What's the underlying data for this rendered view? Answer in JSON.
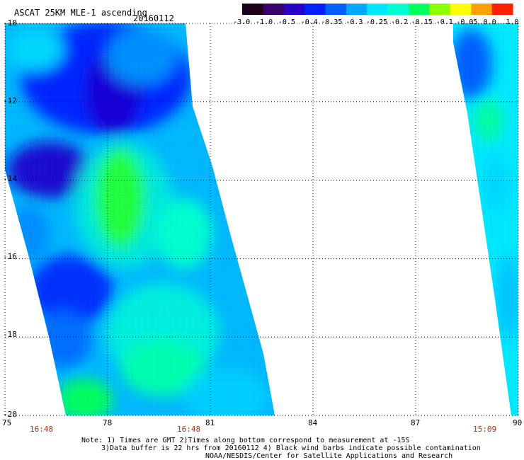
{
  "header": {
    "title": "ASCAT 25KM MLE-1 ascending",
    "date": "20160112"
  },
  "colorbar": {
    "labels": [
      "-3.0",
      "-1.0",
      "-0.5",
      "-0.4",
      "-0.35",
      "-0.3",
      "-0.25",
      "-0.2",
      "-0.15",
      "-0.1",
      "-0.05",
      "0.0",
      "1.0"
    ],
    "colors": [
      "#1a0018",
      "#3a006a",
      "#2a00c8",
      "#0020ff",
      "#0060ff",
      "#00a8ff",
      "#00e8ff",
      "#00ffd0",
      "#00ff60",
      "#90ff00",
      "#ffff00",
      "#ffa000",
      "#ff2000"
    ]
  },
  "map": {
    "lon_ticks": [
      "75",
      "78",
      "81",
      "84",
      "87",
      "90"
    ],
    "lat_ticks": [
      "-10",
      "-12",
      "-14",
      "-16",
      "-18",
      "-20"
    ],
    "lon_range": [
      75,
      90
    ],
    "lat_range": [
      -20,
      -10
    ],
    "grid": "dotted"
  },
  "times": [
    "16:48",
    "16:48",
    "15:09"
  ],
  "time_color": "#b03000",
  "notes": [
    "Note: 1) Times are GMT 2)Times along bottom correspond to measurement at -15S",
    "3)Data buffer is 22 hrs from 20160112 4) Black wind barbs indicate possible contamination",
    "NOAA/NESDIS/Center for Satellite Applications and Research"
  ]
}
